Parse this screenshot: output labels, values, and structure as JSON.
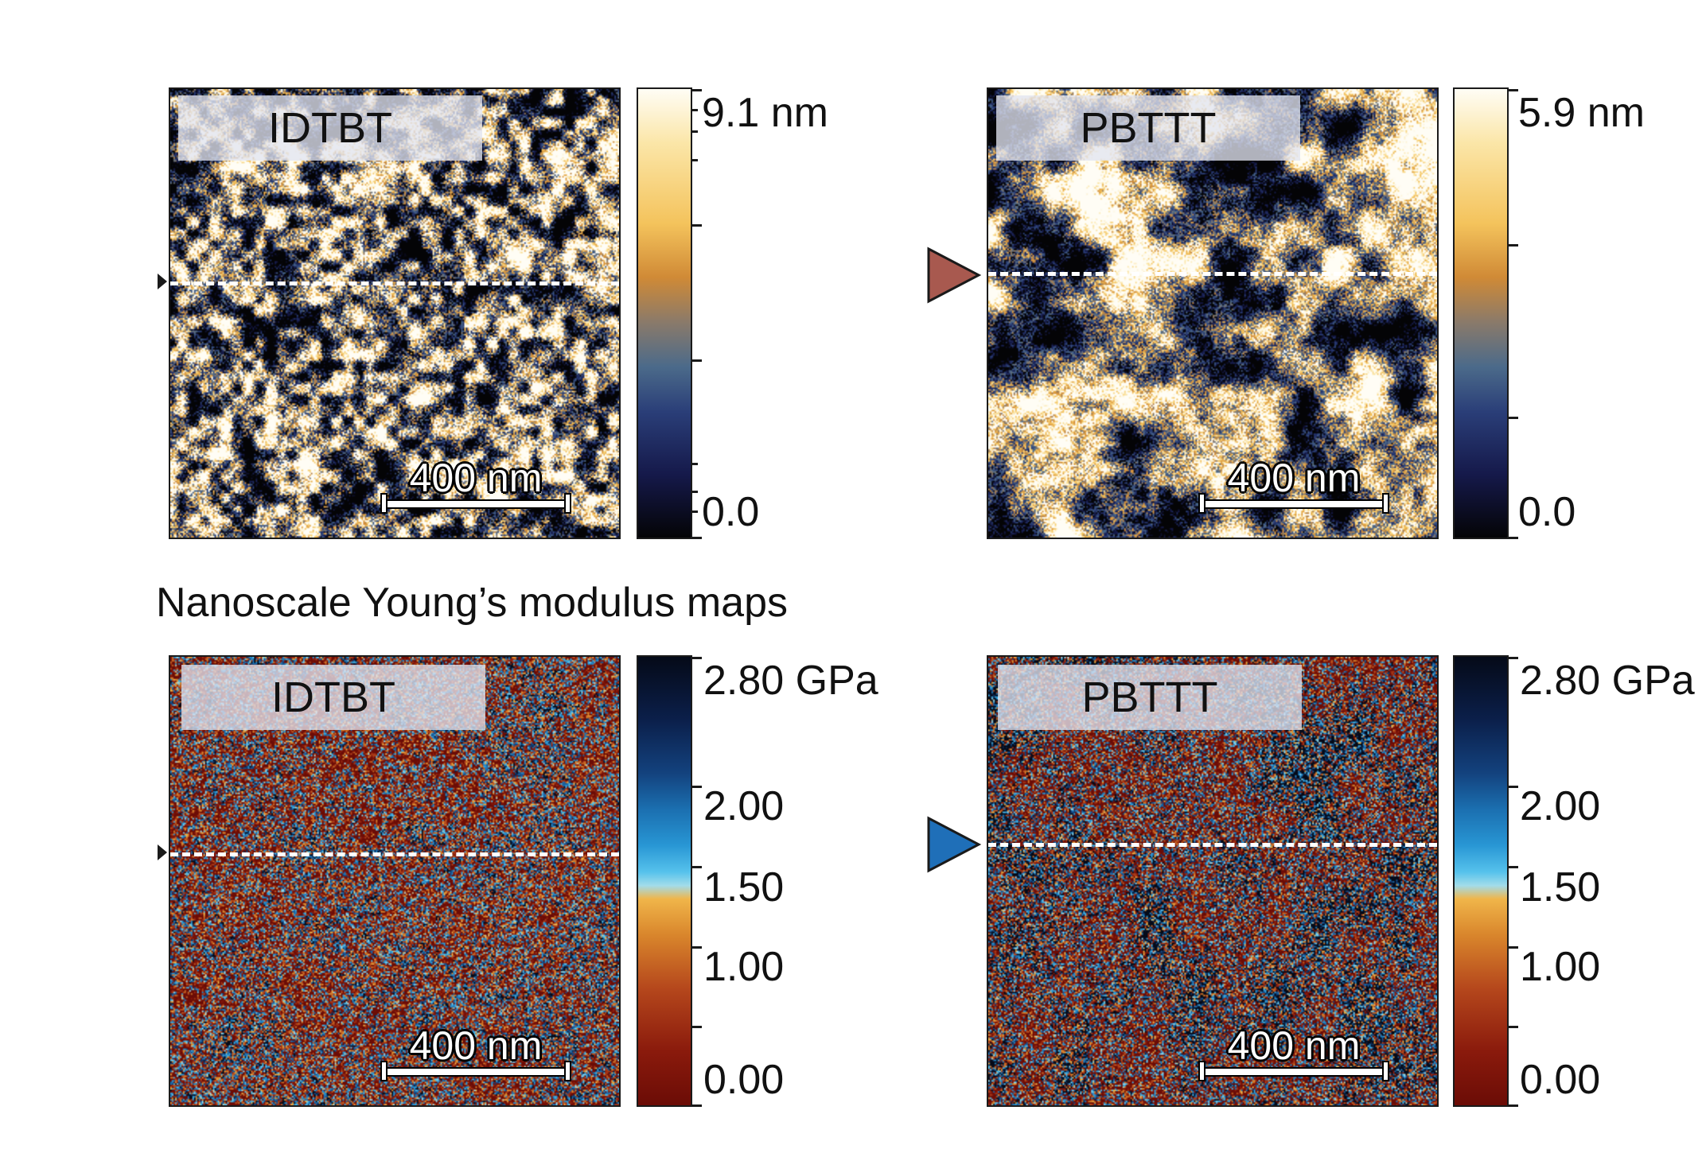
{
  "section_title": "Nanoscale Young’s modulus maps",
  "scale_bar_label": "400 nm",
  "topography": {
    "panels": [
      {
        "label": "IDTBT"
      },
      {
        "label": "PBTTT"
      }
    ],
    "colorbars": [
      {
        "max": "9.1 nm",
        "min": "0.0"
      },
      {
        "max": "5.9 nm",
        "min": "0.0"
      }
    ]
  },
  "modulus": {
    "panels": [
      {
        "label": "IDTBT"
      },
      {
        "label": "PBTTT"
      }
    ],
    "colorbar_labels": [
      "2.80 GPa",
      "2.00",
      "1.50",
      "1.00",
      "0.00"
    ]
  },
  "colors": {
    "marker_topography": "#a8594f",
    "marker_modulus": "#1f6fb8",
    "panel_border": "#1a1a1a",
    "dashed_line": "#ffffff"
  }
}
